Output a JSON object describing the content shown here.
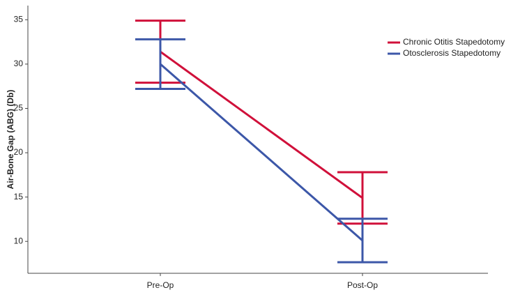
{
  "chart_data": {
    "type": "line",
    "y_label": "Air-Bone Gap (ABG) (Db)",
    "categories": [
      "Pre-Op",
      "Post-Op"
    ],
    "series": [
      {
        "name": "Chronic Otitis Stapedotomy",
        "color": "#d0103a",
        "values": [
          31.4,
          14.9
        ],
        "errors": [
          3.5,
          2.9
        ]
      },
      {
        "name": "Otosclerosis Stapedotomy",
        "color": "#3c57a8",
        "values": [
          30.0,
          10.1
        ],
        "errors": [
          2.8,
          2.45
        ]
      }
    ],
    "ylim": [
      6.4,
      36.6
    ],
    "yticks": [
      10,
      15,
      20,
      25,
      30,
      35
    ],
    "grid": false,
    "legend": "top-right"
  }
}
